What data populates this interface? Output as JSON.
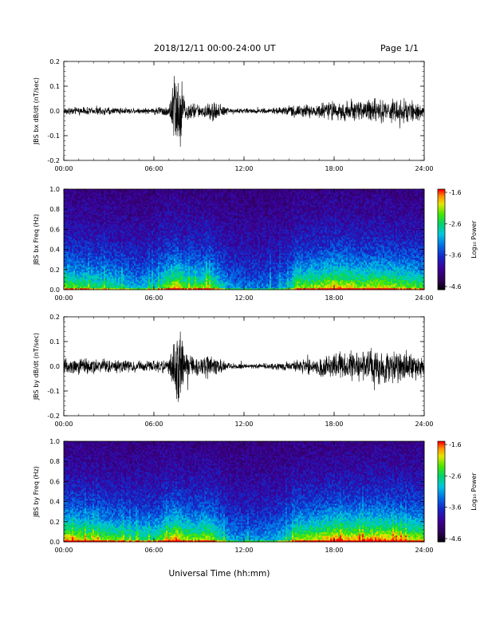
{
  "header": {
    "date_label": "2018/12/11   00:00-24:00 UT",
    "page_label": "Page 1/1"
  },
  "footer": {
    "xlabel": "Universal Time (hh:mm)"
  },
  "colorbar": {
    "label": "Log₁₀ Power",
    "ticks": [
      "-1.6",
      "-2.6",
      "-3.6",
      "-4.6"
    ],
    "range": [
      -4.6,
      -1.6
    ]
  },
  "chart_data": [
    {
      "type": "line",
      "panel": "bx_waveform",
      "ylabel": "JBS bx dB/dt (nT/sec)",
      "xlim": [
        0,
        24
      ],
      "ylim": [
        -0.2,
        0.2
      ],
      "xticks": [
        "00:00",
        "06:00",
        "12:00",
        "18:00",
        "24:00"
      ],
      "yticks": [
        "0.2",
        "0.1",
        "0.0",
        "-0.1",
        "-0.2"
      ],
      "envelope": {
        "x": [
          0,
          1,
          2,
          3,
          4,
          5,
          6,
          7,
          7.4,
          7.6,
          7.8,
          8,
          9,
          9.5,
          10,
          11,
          12,
          13,
          14,
          14.5,
          15,
          16,
          17,
          18,
          19,
          20,
          21,
          22,
          23,
          24
        ],
        "amplitude": [
          0.015,
          0.018,
          0.02,
          0.018,
          0.015,
          0.014,
          0.015,
          0.03,
          0.2,
          0.2,
          0.2,
          0.05,
          0.03,
          0.04,
          0.05,
          0.015,
          0.012,
          0.012,
          0.013,
          0.02,
          0.025,
          0.03,
          0.035,
          0.045,
          0.055,
          0.05,
          0.055,
          0.06,
          0.05,
          0.035
        ]
      }
    },
    {
      "type": "heatmap",
      "panel": "bx_spectrogram",
      "ylabel": "JBS bx Freq (Hz)",
      "xlim": [
        0,
        24
      ],
      "ylim": [
        0.0,
        1.0
      ],
      "xticks": [
        "00:00",
        "06:00",
        "12:00",
        "18:00",
        "24:00"
      ],
      "yticks": [
        "1.0",
        "0.8",
        "0.6",
        "0.4",
        "0.2",
        "0.0"
      ],
      "activity": {
        "x": [
          0,
          1,
          2,
          3,
          4,
          5,
          6,
          7,
          7.5,
          8,
          9,
          9.5,
          10,
          11,
          12,
          13,
          14,
          15,
          15.5,
          16,
          17,
          18,
          19,
          20,
          21,
          22,
          23,
          24
        ],
        "level": [
          0.55,
          0.5,
          0.45,
          0.45,
          0.35,
          0.3,
          0.35,
          0.6,
          0.7,
          0.55,
          0.5,
          0.6,
          0.5,
          0.25,
          0.2,
          0.2,
          0.2,
          0.3,
          0.6,
          0.55,
          0.6,
          0.7,
          0.65,
          0.6,
          0.65,
          0.6,
          0.55,
          0.5
        ]
      }
    },
    {
      "type": "line",
      "panel": "by_waveform",
      "ylabel": "JBS by dB/dt (nT/sec)",
      "xlim": [
        0,
        24
      ],
      "ylim": [
        -0.2,
        0.2
      ],
      "xticks": [
        "00:00",
        "06:00",
        "12:00",
        "18:00",
        "24:00"
      ],
      "yticks": [
        "0.2",
        "0.1",
        "0.0",
        "-0.1",
        "-0.2"
      ],
      "envelope": {
        "x": [
          0,
          1,
          2,
          3,
          4,
          5,
          6,
          7,
          7.4,
          7.6,
          7.8,
          8,
          9,
          9.5,
          10,
          11,
          12,
          13,
          14,
          15,
          16,
          17,
          18,
          19,
          20,
          21,
          22,
          23,
          24
        ],
        "amplitude": [
          0.035,
          0.04,
          0.035,
          0.03,
          0.03,
          0.025,
          0.025,
          0.04,
          0.2,
          0.2,
          0.2,
          0.06,
          0.04,
          0.06,
          0.05,
          0.015,
          0.012,
          0.012,
          0.015,
          0.025,
          0.035,
          0.045,
          0.06,
          0.07,
          0.075,
          0.08,
          0.085,
          0.07,
          0.05
        ]
      }
    },
    {
      "type": "heatmap",
      "panel": "by_spectrogram",
      "ylabel": "JBS by Freq (Hz)",
      "xlim": [
        0,
        24
      ],
      "ylim": [
        0.0,
        1.0
      ],
      "xticks": [
        "00:00",
        "06:00",
        "12:00",
        "18:00",
        "24:00"
      ],
      "yticks": [
        "1.0",
        "0.8",
        "0.6",
        "0.4",
        "0.2",
        "0.0"
      ],
      "activity": {
        "x": [
          0,
          1,
          2,
          3,
          4,
          5,
          6,
          7,
          7.5,
          8,
          9,
          9.5,
          10,
          11,
          12,
          13,
          14,
          15,
          15.5,
          16,
          17,
          18,
          19,
          20,
          21,
          22,
          23,
          24
        ],
        "level": [
          0.7,
          0.65,
          0.6,
          0.55,
          0.5,
          0.45,
          0.45,
          0.65,
          0.75,
          0.6,
          0.55,
          0.65,
          0.55,
          0.3,
          0.25,
          0.25,
          0.3,
          0.4,
          0.65,
          0.6,
          0.65,
          0.75,
          0.7,
          0.7,
          0.75,
          0.7,
          0.65,
          0.6
        ]
      }
    }
  ]
}
